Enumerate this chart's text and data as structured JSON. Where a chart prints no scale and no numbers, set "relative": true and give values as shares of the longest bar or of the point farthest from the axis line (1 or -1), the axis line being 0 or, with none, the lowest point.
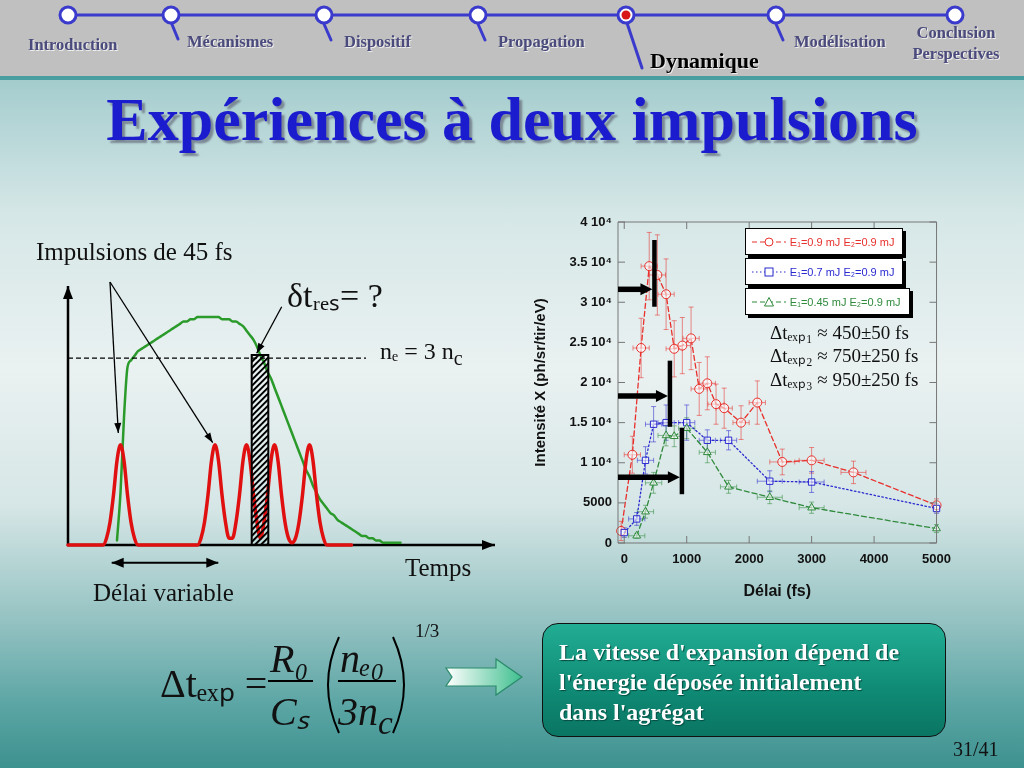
{
  "chart_data": [
    {
      "type": "line",
      "relative": true,
      "xlabel": "Temps",
      "categories": [
        null,
        null,
        null,
        null,
        null,
        null,
        null,
        null,
        null,
        null,
        null,
        null,
        null,
        null,
        null,
        null,
        null,
        null,
        null,
        null,
        null,
        null,
        null,
        null,
        null,
        null,
        null,
        null,
        null,
        null,
        null,
        null,
        null,
        null,
        null,
        null,
        null,
        null,
        null,
        null,
        null,
        null,
        null,
        null,
        null,
        null,
        null,
        null,
        null,
        null,
        null,
        null,
        null,
        null,
        null,
        null,
        null,
        null,
        null,
        null,
        null,
        null,
        null,
        null,
        null,
        null,
        null,
        null,
        null,
        null,
        null,
        null,
        null,
        null,
        null,
        null,
        null,
        null,
        null,
        null,
        null,
        null,
        null,
        null,
        null,
        null,
        null,
        null,
        null,
        null,
        null,
        null,
        null,
        null,
        null,
        null,
        null,
        null,
        null,
        null,
        null,
        null,
        null,
        null,
        null,
        null,
        null,
        null,
        null,
        null,
        null,
        null,
        null,
        null,
        null,
        null,
        null,
        null,
        null,
        null,
        null
      ],
      "series": [
        {
          "color": "#2a9a2a",
          "values": [
            null,
            null,
            null,
            null,
            null,
            null,
            null,
            null,
            null,
            null,
            null,
            null,
            null,
            null,
            0.02,
            0.23,
            0.56,
            0.78,
            0.81,
            0.83,
            0.85,
            0.86,
            0.87,
            0.88,
            0.89,
            0.9,
            0.91,
            0.92,
            0.93,
            0.94,
            0.95,
            0.96,
            0.97,
            0.98,
            0.98,
            0.99,
            0.99,
            1,
            1,
            1,
            1,
            1,
            1,
            1,
            0.99,
            0.99,
            0.99,
            0.98,
            0.98,
            0.97,
            0.96,
            0.94,
            0.92,
            0.9,
            0.87,
            0.83,
            0.8,
            0.76,
            0.73,
            0.69,
            0.65,
            0.61,
            0.57,
            0.53,
            0.49,
            0.45,
            0.41,
            0.37,
            0.33,
            0.3,
            0.26,
            0.23,
            0.2,
            0.18,
            0.16,
            0.14,
            0.13,
            0.11,
            0.1,
            0.09,
            0.08,
            0.07,
            0.06,
            0.05,
            0.04,
            0.04,
            0.03,
            0.03,
            0.02,
            0.02,
            0.01,
            0.01,
            0.01,
            0.01,
            0.01,
            0.01,
            null,
            null,
            null,
            null,
            null,
            null,
            null,
            null,
            null,
            null,
            null,
            null,
            null,
            null,
            null,
            null,
            null,
            null,
            null,
            null,
            null,
            null,
            null,
            null,
            null
          ]
        },
        {
          "color": "#e01010",
          "values": [
            0,
            0,
            0,
            0,
            0,
            0,
            0,
            0,
            0,
            0,
            0,
            0.03,
            0.1,
            0.22,
            0.37,
            0.44,
            0.37,
            0.22,
            0.1,
            0.03,
            0,
            0,
            0,
            0,
            0,
            0,
            0,
            0,
            0,
            0,
            0,
            0,
            0,
            0,
            0,
            0,
            0,
            0,
            0.03,
            0.1,
            0.22,
            0.37,
            0.44,
            0.37,
            0.22,
            0.1,
            0.03,
            0.03,
            0.1,
            0.22,
            0.37,
            0.44,
            0.37,
            0.22,
            0.1,
            0.03,
            0.1,
            0.22,
            0.37,
            0.44,
            0.37,
            0.22,
            0.1,
            0.03,
            0.01,
            0.03,
            0.1,
            0.22,
            0.37,
            0.44,
            0.37,
            0.22,
            0.1,
            0.03,
            0,
            0,
            0,
            0,
            0,
            0,
            0,
            0,
            null,
            null,
            null,
            null,
            null,
            null,
            null,
            null,
            null,
            null,
            null,
            null,
            null,
            null,
            null,
            null,
            null,
            null,
            null,
            null,
            null,
            null,
            null,
            null,
            null,
            null,
            null,
            null,
            null,
            null,
            null,
            null,
            null,
            null,
            null,
            null,
            null,
            null,
            null
          ]
        }
      ],
      "ref_lines": [
        {
          "axis": "y",
          "value": 0.82,
          "color": "#000000",
          "line_style": "dashed"
        }
      ],
      "annotations": [
        "Impulsions de 45 fs",
        "δtᵣₑₛ= ?",
        "nₑ = 3 n$_{c}$",
        "Délai variable"
      ]
    },
    {
      "type": "line",
      "title": "Expériences à deux impulsions",
      "xlabel": "Délai (fs)",
      "ylabel": "Intensité X (ph/sr/tir/eV)",
      "xlim": [
        -100,
        5000
      ],
      "xticks": [
        0,
        1000,
        2000,
        3000,
        4000,
        5000
      ],
      "ylim": [
        0,
        40000
      ],
      "yticks": [
        0,
        5000,
        {
          "value": 10000,
          "label": "1 10⁴"
        },
        {
          "value": 15000,
          "label": "1.5 10⁴"
        },
        {
          "value": 20000,
          "label": "2 10⁴"
        },
        {
          "value": 25000,
          "label": "2.5 10⁴"
        },
        {
          "value": 30000,
          "label": "3 10⁴"
        },
        {
          "value": 35000,
          "label": "3.5 10⁴"
        },
        {
          "value": 40000,
          "label": "4 10⁴"
        }
      ],
      "legend": "top right",
      "series": [
        {
          "name": "E₁=0.9 mJ E₂=0.9 mJ",
          "color": "#e8302c",
          "marker": "circle",
          "line_style": "dashed",
          "x": [
            -50,
            130,
            270,
            400,
            530,
            670,
            800,
            930,
            1070,
            1200,
            1330,
            1470,
            1600,
            1870,
            2130,
            2530,
            3000,
            3670,
            5000
          ],
          "values": [
            1500,
            11000,
            24300,
            34500,
            33400,
            31000,
            24200,
            24600,
            25500,
            19200,
            19900,
            17300,
            16800,
            15000,
            17500,
            10100,
            10300,
            8800,
            4700
          ],
          "errors": [
            1200,
            2300,
            3700,
            4200,
            5000,
            4400,
            3500,
            3500,
            3900,
            3300,
            3300,
            2500,
            2500,
            2100,
            2700,
            1600,
            1600,
            1400,
            800
          ],
          "xerrors": [
            null,
            130,
            130,
            130,
            130,
            130,
            130,
            130,
            130,
            130,
            130,
            130,
            130,
            130,
            130,
            200,
            200,
            200,
            null
          ]
        },
        {
          "name": "E₁=0.7 mJ E₂=0.9 mJ",
          "color": "#2a2ad0",
          "marker": "square",
          "line_style": "dotted",
          "x": [
            0,
            200,
            340,
            470,
            670,
            1000,
            1330,
            1670,
            2330,
            3000,
            5000
          ],
          "values": [
            1300,
            3000,
            10300,
            14800,
            15000,
            15000,
            12800,
            12800,
            7700,
            7600,
            4300
          ],
          "errors": [
            600,
            800,
            1700,
            2200,
            2200,
            2200,
            1300,
            1200,
            1300,
            1300,
            600
          ],
          "xerrors": [
            null,
            130,
            130,
            130,
            130,
            130,
            130,
            130,
            200,
            200,
            null
          ]
        },
        {
          "name": "E₁=0.45 mJ E₂=0.9 mJ",
          "color": "#2f8a3c",
          "marker": "triangle",
          "line_style": "dashed",
          "x": [
            200,
            340,
            470,
            670,
            800,
            1000,
            1330,
            1670,
            2330,
            3000,
            5000
          ],
          "values": [
            900,
            3900,
            7500,
            13400,
            13300,
            14300,
            11300,
            7000,
            5700,
            4400,
            1800
          ],
          "errors": [
            300,
            800,
            1300,
            1300,
            1300,
            1300,
            1300,
            800,
            800,
            700,
            500
          ],
          "xerrors": [
            130,
            130,
            130,
            130,
            130,
            130,
            130,
            130,
            200,
            200,
            null
          ]
        }
      ],
      "annotations": [
        "Introduction",
        "Mécanismes",
        "Dispositif",
        "Propagation",
        "Dynamique",
        "Modélisation",
        "Conclusion Perspectives",
        "Δtₑₓₚ₁ ≈ 450±50 fs",
        "Δtₑₓₚ₂ ≈ 750±250 fs",
        "Δtₑₓₚ₃ ≈ 950±250 fs",
        "Δtₑₓₚ =",
        "R₀",
        "Cₛ",
        "nₑ₀",
        "3n$_{c}$",
        "1/3",
        "La vitesse d'expansion dépend de l'énergie déposée initialement dans l'agrégat",
        "31/41"
      ]
    }
  ]
}
